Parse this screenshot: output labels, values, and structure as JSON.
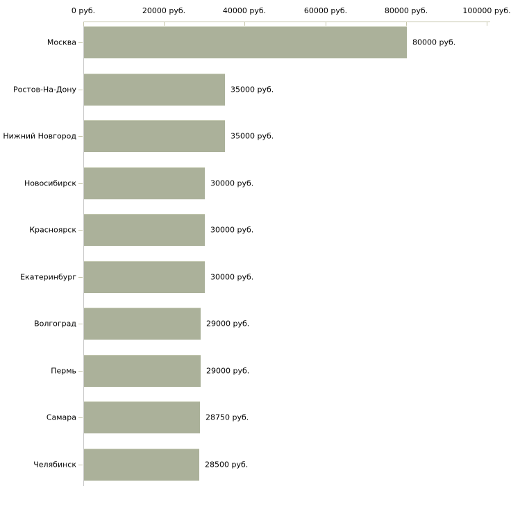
{
  "chart_data": {
    "type": "bar",
    "orientation": "horizontal",
    "title": "",
    "categories": [
      "Москва",
      "Ростов-На-Дону",
      "Нижний Новгород",
      "Новосибирск",
      "Красноярск",
      "Екатеринбург",
      "Волгоград",
      "Пермь",
      "Самара",
      "Челябинск"
    ],
    "values": [
      80000,
      35000,
      35000,
      30000,
      30000,
      30000,
      29000,
      29000,
      28750,
      28500
    ],
    "value_labels": [
      "80000 руб.",
      "35000 руб.",
      "35000 руб.",
      "30000 руб.",
      "30000 руб.",
      "30000 руб.",
      "29000 руб.",
      "29000 руб.",
      "28750 руб.",
      "28500 руб."
    ],
    "xlabel": "",
    "ylabel": "",
    "xlim": [
      0,
      100000
    ],
    "x_axis": {
      "position": "top",
      "ticks": [
        0,
        20000,
        40000,
        60000,
        80000,
        100000
      ],
      "tick_labels": [
        "0 руб.",
        "20000 руб.",
        "40000 руб.",
        "60000 руб.",
        "80000 руб.",
        "100000 руб."
      ]
    },
    "grid": false,
    "legend": false,
    "colors": {
      "bar": "#abb19a",
      "bar_top_edge": "#c3c8b0",
      "x_axis": "#c6c6ab",
      "y_axis": "#c9c9c9",
      "text": "#000000",
      "background": "#ffffff"
    }
  }
}
